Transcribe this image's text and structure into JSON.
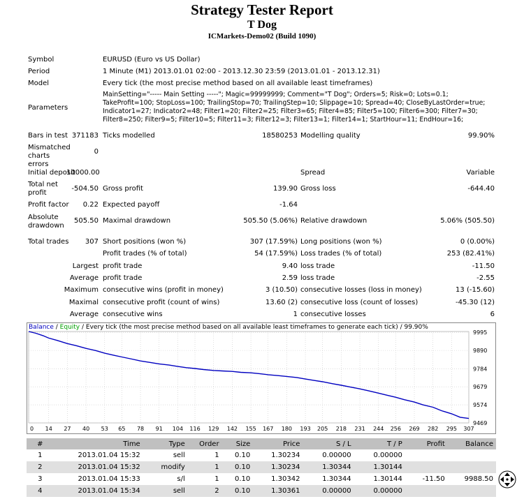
{
  "header": {
    "title": "Strategy Tester Report",
    "subtitle": "T Dog",
    "server": "ICMarkets-Demo02 (Build 1090)"
  },
  "summary": {
    "symbol_label": "Symbol",
    "symbol_value": "EURUSD (Euro vs US Dollar)",
    "period_label": "Period",
    "period_value": "1 Minute (M1) 2013.01.01 02:00 - 2013.12.30 23:59 (2013.01.01 - 2013.12.31)",
    "model_label": "Model",
    "model_value": "Every tick (the most precise method based on all available least timeframes)",
    "parameters_label": "Parameters",
    "parameters_value": "MainSetting=\"----- Main Setting -----\"; Magic=99999999; Comment=\"T Dog\"; Orders=5; Risk=0; Lots=0.1; TakeProfit=100; StopLoss=100; TrailingStop=70; TrailingStep=10; Slippage=10; Spread=40; CloseByLastOrder=true; Indicator1=27; Indicator2=48; Filter1=20; Filter2=25; Filter3=65; Filter4=85; Filter5=100; Filter6=300; Filter7=30; Filter8=250; Filter9=5; Filter10=5; Filter11=3; Filter12=3; Filter13=1; Filter14=1; StartHour=11; EndHour=16;",
    "bars_label": "Bars in test",
    "bars_value": "371183",
    "ticks_label": "Ticks modelled",
    "ticks_value": "18580253",
    "quality_label": "Modelling quality",
    "quality_value": "99.90%",
    "mismatched_label": "Mismatched charts errors",
    "mismatched_value": "0",
    "deposit_label": "Initial deposit",
    "deposit_value": "10000.00",
    "spread_label": "Spread",
    "spread_value": "Variable",
    "netprofit_label": "Total net profit",
    "netprofit_value": "-504.50",
    "grossprofit_label": "Gross profit",
    "grossprofit_value": "139.90",
    "grossloss_label": "Gross loss",
    "grossloss_value": "-644.40",
    "pf_label": "Profit factor",
    "pf_value": "0.22",
    "payoff_label": "Expected payoff",
    "payoff_value": "-1.64",
    "absdd_label": "Absolute drawdown",
    "absdd_value": "505.50",
    "maxdd_label": "Maximal drawdown",
    "maxdd_value": "505.50 (5.06%)",
    "reldd_label": "Relative drawdown",
    "reldd_value": "5.06% (505.50)",
    "trades_label": "Total trades",
    "trades_value": "307",
    "short_label": "Short positions (won %)",
    "short_value": "307 (17.59%)",
    "long_label": "Long positions (won %)",
    "long_value": "0 (0.00%)",
    "ptrades_label": "Profit trades (% of total)",
    "ptrades_value": "54 (17.59%)",
    "ltrades_label": "Loss trades (% of total)",
    "ltrades_value": "253 (82.41%)",
    "largest_label": "Largest",
    "largest_profit_label": "profit trade",
    "largest_profit_value": "9.40",
    "largest_loss_label": "loss trade",
    "largest_loss_value": "-11.50",
    "average_label": "Average",
    "average_profit_label": "profit trade",
    "average_profit_value": "2.59",
    "average_loss_label": "loss trade",
    "average_loss_value": "-2.55",
    "maximum_label": "Maximum",
    "cons_wins_money_label": "consecutive wins (profit in money)",
    "cons_wins_money_value": "3 (10.50)",
    "cons_losses_money_label": "consecutive losses (loss in money)",
    "cons_losses_money_value": "13 (-15.60)",
    "maximal_label": "Maximal",
    "cons_profit_count_label": "consecutive profit (count of wins)",
    "cons_profit_count_value": "13.60 (2)",
    "cons_loss_count_label": "consecutive loss (count of losses)",
    "cons_loss_count_value": "-45.30 (12)",
    "average2_label": "Average",
    "avg_cons_wins_label": "consecutive wins",
    "avg_cons_wins_value": "1",
    "avg_cons_losses_label": "consecutive losses",
    "avg_cons_losses_value": "6"
  },
  "chart_caption": {
    "balance": "Balance",
    "sep": " / ",
    "equity": "Equity",
    "rest": " / Every tick (the most precise method based on all available least timeframes to generate each tick) / 99.90%"
  },
  "chart_data": {
    "type": "line",
    "xlabel": "",
    "ylabel": "",
    "x_ticks": [
      "0",
      "14",
      "27",
      "40",
      "53",
      "65",
      "78",
      "91",
      "104",
      "116",
      "129",
      "142",
      "155",
      "167",
      "180",
      "193",
      "205",
      "218",
      "231",
      "244",
      "256",
      "269",
      "282",
      "295",
      "307"
    ],
    "y_ticks": [
      "9995",
      "9890",
      "9784",
      "9679",
      "9574",
      "9469"
    ],
    "ylim": [
      9469,
      10000
    ],
    "xlim": [
      0,
      307
    ],
    "series": [
      {
        "name": "Balance",
        "color": "#0000c0",
        "x": [
          0,
          5,
          10,
          14,
          20,
          27,
          33,
          40,
          47,
          53,
          60,
          65,
          72,
          78,
          85,
          91,
          98,
          104,
          110,
          116,
          122,
          129,
          135,
          142,
          148,
          155,
          161,
          167,
          174,
          180,
          187,
          193,
          199,
          205,
          212,
          218,
          224,
          231,
          237,
          244,
          250,
          256,
          262,
          269,
          275,
          282,
          288,
          295,
          301,
          307
        ],
        "y": [
          10000,
          9990,
          9976,
          9962,
          9948,
          9930,
          9918,
          9902,
          9889,
          9874,
          9861,
          9852,
          9840,
          9829,
          9820,
          9812,
          9805,
          9797,
          9790,
          9785,
          9779,
          9774,
          9771,
          9768,
          9763,
          9760,
          9755,
          9749,
          9744,
          9739,
          9733,
          9724,
          9716,
          9708,
          9697,
          9688,
          9678,
          9667,
          9656,
          9642,
          9630,
          9618,
          9604,
          9590,
          9574,
          9560,
          9540,
          9522,
          9502,
          9495
        ]
      }
    ]
  },
  "trades": {
    "headers": [
      "#",
      "Time",
      "Type",
      "Order",
      "Size",
      "Price",
      "S / L",
      "T / P",
      "Profit",
      "Balance"
    ],
    "rows": [
      [
        "1",
        "2013.01.04 15:32",
        "sell",
        "1",
        "0.10",
        "1.30234",
        "0.00000",
        "0.00000",
        "",
        ""
      ],
      [
        "2",
        "2013.01.04 15:32",
        "modify",
        "1",
        "0.10",
        "1.30234",
        "1.30344",
        "1.30144",
        "",
        ""
      ],
      [
        "3",
        "2013.01.04 15:33",
        "s/l",
        "1",
        "0.10",
        "1.30342",
        "1.30344",
        "1.30144",
        "-11.50",
        "9988.50"
      ],
      [
        "4",
        "2013.01.04 15:34",
        "sell",
        "2",
        "0.10",
        "1.30361",
        "0.00000",
        "0.00000",
        "",
        ""
      ]
    ]
  },
  "icons": {
    "scroll": "move-arrows-icon"
  }
}
